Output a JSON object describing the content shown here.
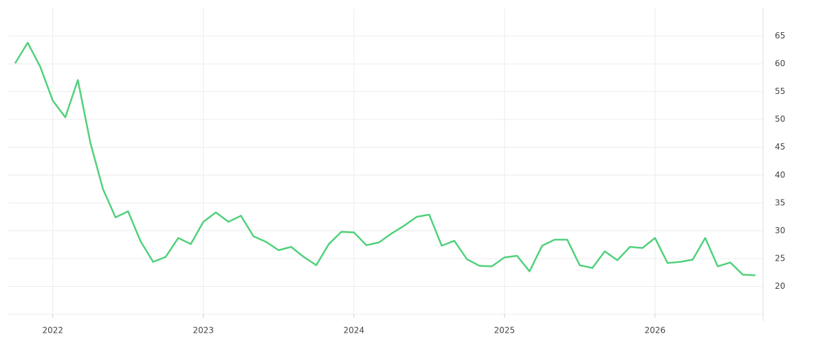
{
  "chart_data": {
    "type": "line",
    "categories": [
      null,
      null,
      null,
      "2022",
      null,
      null,
      null,
      null,
      null,
      null,
      null,
      null,
      null,
      null,
      null,
      "2023",
      null,
      null,
      null,
      null,
      null,
      null,
      null,
      null,
      null,
      null,
      null,
      "2024",
      null,
      null,
      null,
      null,
      null,
      null,
      null,
      null,
      null,
      null,
      null,
      "2025",
      null,
      null,
      null,
      null,
      null,
      null,
      null,
      null,
      null,
      null,
      null,
      "2026",
      null,
      null,
      null,
      null,
      null,
      null,
      null,
      null
    ],
    "series": [
      {
        "color": "#4fd17a",
        "values": [
          60.1,
          63.8,
          59.5,
          53.4,
          50.4,
          57.1,
          45.8,
          37.5,
          32.4,
          33.5,
          28.1,
          24.4,
          25.3,
          28.7,
          27.6,
          31.6,
          33.3,
          31.6,
          32.7,
          29.0,
          28.0,
          26.5,
          27.1,
          25.3,
          23.8,
          27.6,
          29.8,
          29.7,
          27.4,
          27.9,
          29.5,
          30.9,
          32.5,
          32.9,
          27.3,
          28.2,
          24.9,
          23.7,
          23.6,
          25.2,
          25.5,
          22.7,
          27.3,
          28.4,
          28.4,
          23.8,
          23.3,
          26.3,
          24.7,
          27.1,
          26.9,
          28.7,
          24.2,
          24.4,
          24.8,
          28.7,
          23.6,
          24.3,
          22.1,
          22.0
        ]
      }
    ],
    "ylim": [
      15,
      70
    ],
    "yticks": [
      20,
      25,
      30,
      35,
      40,
      45,
      50,
      55,
      60,
      65
    ],
    "grid": true
  }
}
